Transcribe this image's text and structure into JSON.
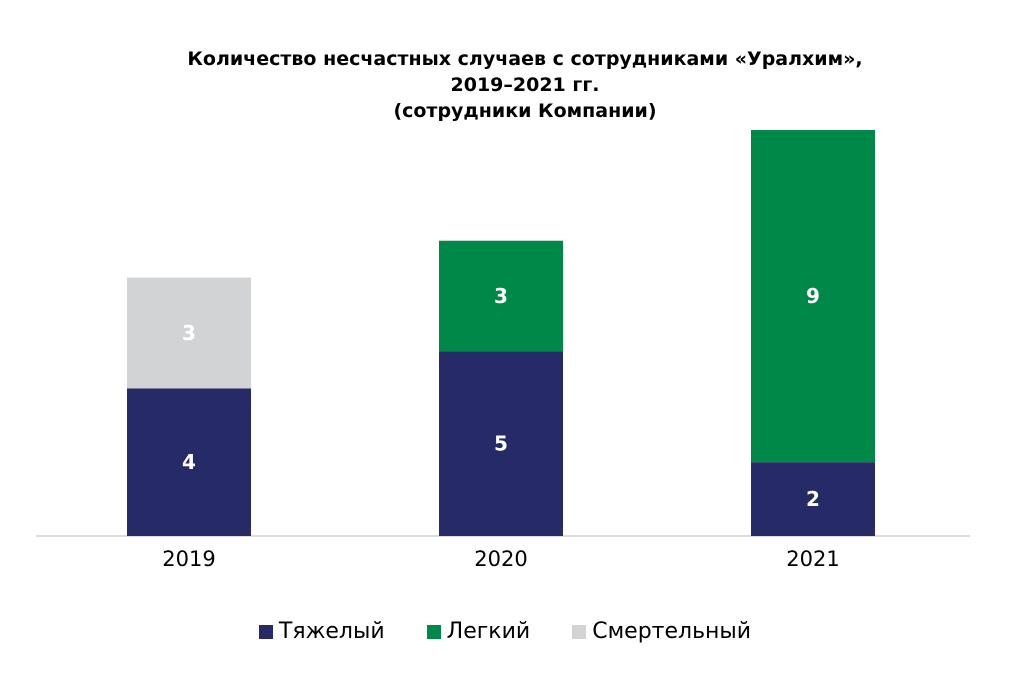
{
  "chart_data": {
    "type": "bar",
    "stacked": true,
    "title_lines": [
      "Количество несчастных случаев с сотрудниками «Уралхим»,",
      "2019–2021 гг.",
      "(сотрудники Компании)"
    ],
    "categories": [
      "2019",
      "2020",
      "2021"
    ],
    "series": [
      {
        "name": "Тяжелый",
        "values": [
          4,
          5,
          2
        ],
        "color": "#262a66"
      },
      {
        "name": "Легкий",
        "values": [
          0,
          3,
          9
        ],
        "color": "#008848"
      },
      {
        "name": "Смертельный",
        "values": [
          3,
          0,
          0
        ],
        "color": "#d2d3d5"
      }
    ],
    "ylim": [
      0,
      11
    ],
    "grid": false,
    "legend_position": "bottom",
    "xlabel": "",
    "ylabel": ""
  }
}
